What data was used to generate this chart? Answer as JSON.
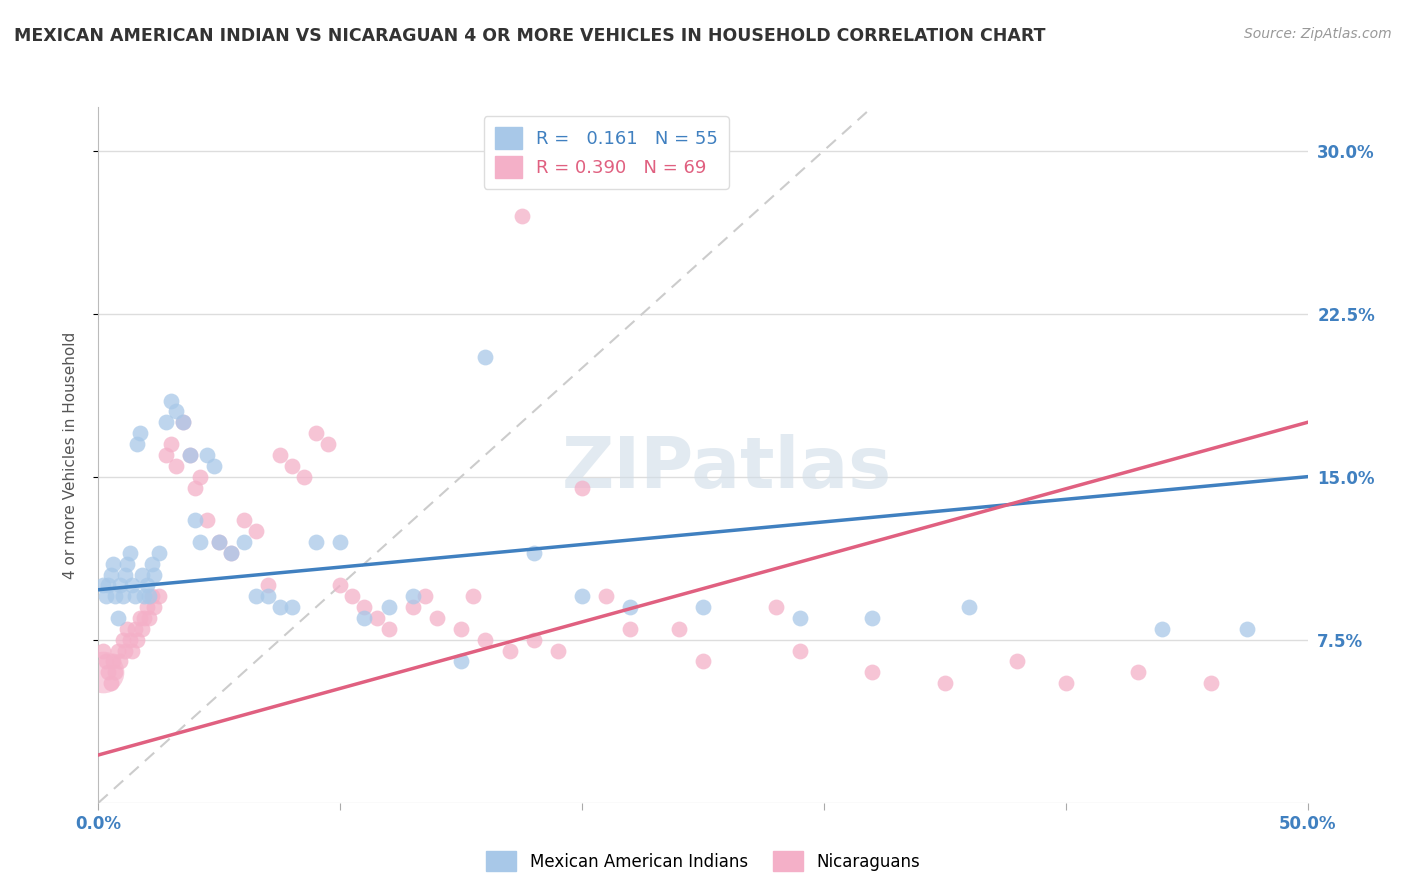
{
  "title": "MEXICAN AMERICAN INDIAN VS NICARAGUAN 4 OR MORE VEHICLES IN HOUSEHOLD CORRELATION CHART",
  "source": "Source: ZipAtlas.com",
  "ylabel": "4 or more Vehicles in Household",
  "ytick_labels": [
    "7.5%",
    "15.0%",
    "22.5%",
    "30.0%"
  ],
  "ytick_values": [
    0.075,
    0.15,
    0.225,
    0.3
  ],
  "xlim": [
    0.0,
    0.5
  ],
  "ylim": [
    0.0,
    0.32
  ],
  "blue_R": 0.161,
  "blue_N": 55,
  "pink_R": 0.39,
  "pink_N": 69,
  "blue_color": "#a8c8e8",
  "pink_color": "#f4b0c8",
  "blue_line_color": "#4080c0",
  "pink_line_color": "#e06080",
  "diagonal_color": "#cccccc",
  "background_color": "#ffffff",
  "legend_label_blue": "Mexican American Indians",
  "legend_label_pink": "Nicaraguans",
  "blue_line_x0": 0.0,
  "blue_line_y0": 0.098,
  "blue_line_x1": 0.5,
  "blue_line_y1": 0.15,
  "pink_line_x0": 0.0,
  "pink_line_y0": 0.022,
  "pink_line_x1": 0.5,
  "pink_line_y1": 0.175,
  "blue_scatter_x": [
    0.002,
    0.003,
    0.004,
    0.005,
    0.006,
    0.007,
    0.008,
    0.009,
    0.01,
    0.011,
    0.012,
    0.013,
    0.014,
    0.015,
    0.016,
    0.017,
    0.018,
    0.019,
    0.02,
    0.021,
    0.022,
    0.023,
    0.025,
    0.028,
    0.03,
    0.032,
    0.035,
    0.038,
    0.04,
    0.042,
    0.045,
    0.048,
    0.05,
    0.055,
    0.06,
    0.065,
    0.07,
    0.075,
    0.08,
    0.09,
    0.1,
    0.11,
    0.12,
    0.13,
    0.15,
    0.16,
    0.18,
    0.2,
    0.22,
    0.25,
    0.29,
    0.32,
    0.36,
    0.44,
    0.475
  ],
  "blue_scatter_y": [
    0.1,
    0.095,
    0.1,
    0.105,
    0.11,
    0.095,
    0.085,
    0.1,
    0.095,
    0.105,
    0.11,
    0.115,
    0.1,
    0.095,
    0.165,
    0.17,
    0.105,
    0.095,
    0.1,
    0.095,
    0.11,
    0.105,
    0.115,
    0.175,
    0.185,
    0.18,
    0.175,
    0.16,
    0.13,
    0.12,
    0.16,
    0.155,
    0.12,
    0.115,
    0.12,
    0.095,
    0.095,
    0.09,
    0.09,
    0.12,
    0.12,
    0.085,
    0.09,
    0.095,
    0.065,
    0.205,
    0.115,
    0.095,
    0.09,
    0.09,
    0.085,
    0.085,
    0.09,
    0.08,
    0.08
  ],
  "pink_scatter_x": [
    0.002,
    0.003,
    0.004,
    0.005,
    0.006,
    0.007,
    0.008,
    0.009,
    0.01,
    0.011,
    0.012,
    0.013,
    0.014,
    0.015,
    0.016,
    0.017,
    0.018,
    0.019,
    0.02,
    0.021,
    0.022,
    0.023,
    0.025,
    0.028,
    0.03,
    0.032,
    0.035,
    0.038,
    0.04,
    0.042,
    0.045,
    0.05,
    0.055,
    0.06,
    0.065,
    0.07,
    0.075,
    0.08,
    0.085,
    0.09,
    0.095,
    0.1,
    0.105,
    0.11,
    0.115,
    0.12,
    0.13,
    0.135,
    0.14,
    0.15,
    0.155,
    0.16,
    0.17,
    0.175,
    0.18,
    0.19,
    0.2,
    0.21,
    0.22,
    0.24,
    0.25,
    0.28,
    0.29,
    0.32,
    0.35,
    0.38,
    0.4,
    0.43,
    0.46
  ],
  "pink_scatter_y": [
    0.07,
    0.065,
    0.06,
    0.055,
    0.065,
    0.06,
    0.07,
    0.065,
    0.075,
    0.07,
    0.08,
    0.075,
    0.07,
    0.08,
    0.075,
    0.085,
    0.08,
    0.085,
    0.09,
    0.085,
    0.095,
    0.09,
    0.095,
    0.16,
    0.165,
    0.155,
    0.175,
    0.16,
    0.145,
    0.15,
    0.13,
    0.12,
    0.115,
    0.13,
    0.125,
    0.1,
    0.16,
    0.155,
    0.15,
    0.17,
    0.165,
    0.1,
    0.095,
    0.09,
    0.085,
    0.08,
    0.09,
    0.095,
    0.085,
    0.08,
    0.095,
    0.075,
    0.07,
    0.27,
    0.075,
    0.07,
    0.145,
    0.095,
    0.08,
    0.08,
    0.065,
    0.09,
    0.07,
    0.06,
    0.055,
    0.065,
    0.055,
    0.06,
    0.055
  ]
}
